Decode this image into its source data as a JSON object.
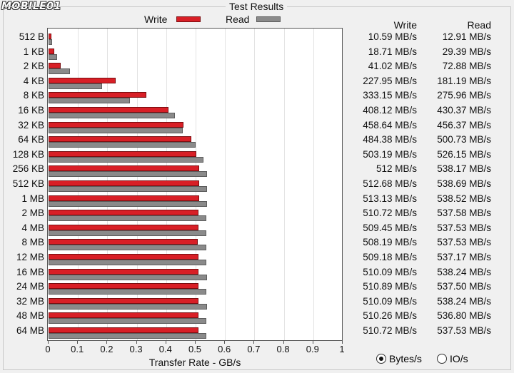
{
  "watermark": "MOBILE01",
  "window": {
    "group_title": "Test Results",
    "legend_write": "Write",
    "legend_read": "Read",
    "col_write": "Write",
    "col_read": "Read"
  },
  "colors": {
    "write": "#d81f26",
    "read": "#8a8a8a"
  },
  "chart_data": {
    "type": "bar",
    "orientation": "horizontal",
    "title": "",
    "xlabel": "Transfer Rate - GB/s",
    "ylabel": "",
    "xlim": [
      0,
      1
    ],
    "xticks": [
      "0",
      "0.1",
      "0.2",
      "0.3",
      "0.4",
      "0.5",
      "0.6",
      "0.7",
      "0.8",
      "0.9",
      "1"
    ],
    "grid": true,
    "legend": "top-center",
    "categories": [
      "512 B",
      "1 KB",
      "2 KB",
      "4 KB",
      "8 KB",
      "16 KB",
      "32 KB",
      "64 KB",
      "128 KB",
      "256 KB",
      "512 KB",
      "1 MB",
      "2 MB",
      "4 MB",
      "8 MB",
      "12 MB",
      "16 MB",
      "24 MB",
      "32 MB",
      "48 MB",
      "64 MB"
    ],
    "series": [
      {
        "name": "Write",
        "values": [
          0.01059,
          0.01871,
          0.04102,
          0.22795,
          0.33315,
          0.40812,
          0.45864,
          0.48438,
          0.50319,
          0.512,
          0.51268,
          0.51313,
          0.51072,
          0.50945,
          0.50819,
          0.50918,
          0.51009,
          0.51089,
          0.51009,
          0.51026,
          0.51072
        ]
      },
      {
        "name": "Read",
        "values": [
          0.01291,
          0.02939,
          0.07288,
          0.18119,
          0.27596,
          0.43037,
          0.45637,
          0.50073,
          0.52615,
          0.53817,
          0.53869,
          0.53852,
          0.53758,
          0.53753,
          0.53753,
          0.53717,
          0.53824,
          0.5375,
          0.53824,
          0.5368,
          0.53753
        ]
      }
    ]
  },
  "table": {
    "write": [
      "10.59 MB/s",
      "18.71 MB/s",
      "41.02 MB/s",
      "227.95 MB/s",
      "333.15 MB/s",
      "408.12 MB/s",
      "458.64 MB/s",
      "484.38 MB/s",
      "503.19 MB/s",
      "512 MB/s",
      "512.68 MB/s",
      "513.13 MB/s",
      "510.72 MB/s",
      "509.45 MB/s",
      "508.19 MB/s",
      "509.18 MB/s",
      "510.09 MB/s",
      "510.89 MB/s",
      "510.09 MB/s",
      "510.26 MB/s",
      "510.72 MB/s"
    ],
    "read": [
      "12.91 MB/s",
      "29.39 MB/s",
      "72.88 MB/s",
      "181.19 MB/s",
      "275.96 MB/s",
      "430.37 MB/s",
      "456.37 MB/s",
      "500.73 MB/s",
      "526.15 MB/s",
      "538.17 MB/s",
      "538.69 MB/s",
      "538.52 MB/s",
      "537.58 MB/s",
      "537.53 MB/s",
      "537.53 MB/s",
      "537.17 MB/s",
      "538.24 MB/s",
      "537.50 MB/s",
      "538.24 MB/s",
      "536.80 MB/s",
      "537.53 MB/s"
    ]
  },
  "units": {
    "options": [
      "Bytes/s",
      "IO/s"
    ],
    "selected": "Bytes/s"
  }
}
